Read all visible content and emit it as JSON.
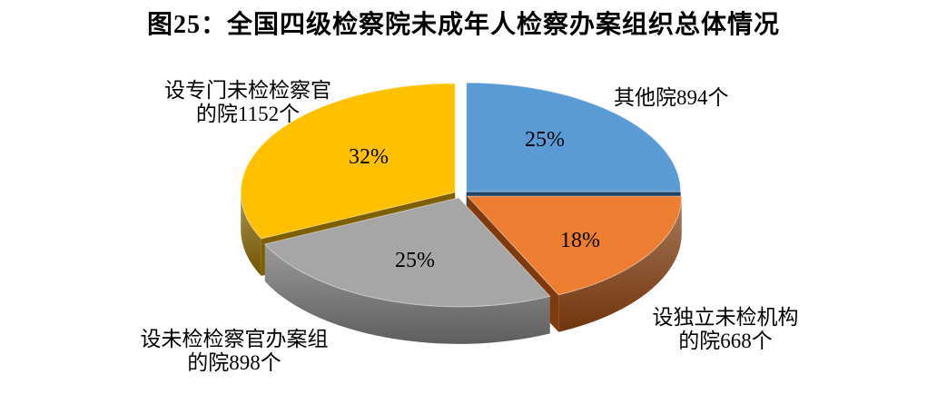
{
  "title": "图25：全国四级检察院未成年人检察办案组织总体情况",
  "chart_data": {
    "type": "pie",
    "style": "3d-exploded",
    "title": "图25：全国四级检察院未成年人检察办案组织总体情况",
    "legend_position": "none",
    "labels_outside": true,
    "unit": "个",
    "start_angle_deg": -90,
    "direction": "clockwise",
    "slices": [
      {
        "id": "other",
        "category": "其他院",
        "count": 894,
        "percent": 25,
        "percent_label": "25%",
        "label": "其他院894个",
        "label_lines": [
          "其他院894个"
        ],
        "color": "#5B9BD5",
        "side_color": "#1F4466"
      },
      {
        "id": "independent",
        "category": "设独立未检机构的院",
        "count": 668,
        "percent": 18,
        "percent_label": "18%",
        "label": "设独立未检机构的院668个",
        "label_lines": [
          "设独立未检机构",
          "的院668个"
        ],
        "color": "#ED7D31",
        "side_color": "#7F3B0E"
      },
      {
        "id": "casegroup",
        "category": "设未检检察官办案组的院",
        "count": 898,
        "percent": 25,
        "percent_label": "25%",
        "label": "设未检检察官办案组的院898个",
        "label_lines": [
          "设未检检察官办案组",
          "的院898个"
        ],
        "color": "#A6A6A6",
        "side_color": "#6B6B6B"
      },
      {
        "id": "dedicated",
        "category": "设专门未检检察官的院",
        "count": 1152,
        "percent": 32,
        "percent_label": "32%",
        "label": "设专门未检检察官的院1152个",
        "label_lines": [
          "设专门未检检察官",
          "的院1152个"
        ],
        "color": "#FFC000",
        "side_color": "#7F6000"
      }
    ]
  }
}
